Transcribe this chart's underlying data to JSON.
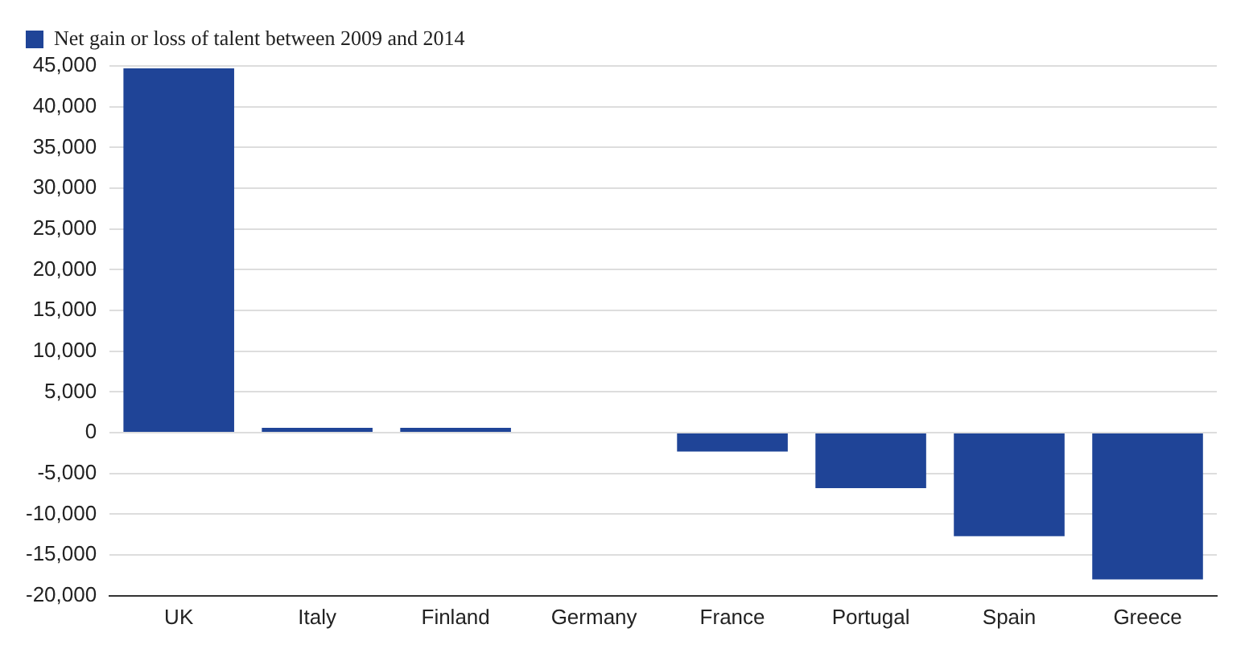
{
  "chart_data": {
    "type": "bar",
    "categories": [
      "UK",
      "Italy",
      "Finland",
      "Germany",
      "France",
      "Portugal",
      "Spain",
      "Greece"
    ],
    "series": [
      {
        "name": "Net gain or loss of talent between 2009 and 2014",
        "color": "#1f4497",
        "values": [
          44700,
          600,
          600,
          0,
          -2300,
          -6800,
          -12700,
          -18000
        ]
      }
    ],
    "ylim": [
      -20000,
      45000
    ],
    "yticks": [
      {
        "value": -20000,
        "label": "-20,000"
      },
      {
        "value": -15000,
        "label": "-15,000"
      },
      {
        "value": -10000,
        "label": "-10,000"
      },
      {
        "value": -5000,
        "label": "-5,000"
      },
      0,
      {
        "value": 5000,
        "label": "5,000"
      },
      {
        "value": 10000,
        "label": "10,000"
      },
      {
        "value": 15000,
        "label": "15,000"
      },
      {
        "value": 20000,
        "label": "20,000"
      },
      {
        "value": 25000,
        "label": "25,000"
      },
      {
        "value": 30000,
        "label": "30,000"
      },
      {
        "value": 35000,
        "label": "35,000"
      },
      {
        "value": 40000,
        "label": "40,000"
      },
      {
        "value": 45000,
        "label": "45,000"
      }
    ],
    "grid": "y",
    "legend": "top left"
  }
}
